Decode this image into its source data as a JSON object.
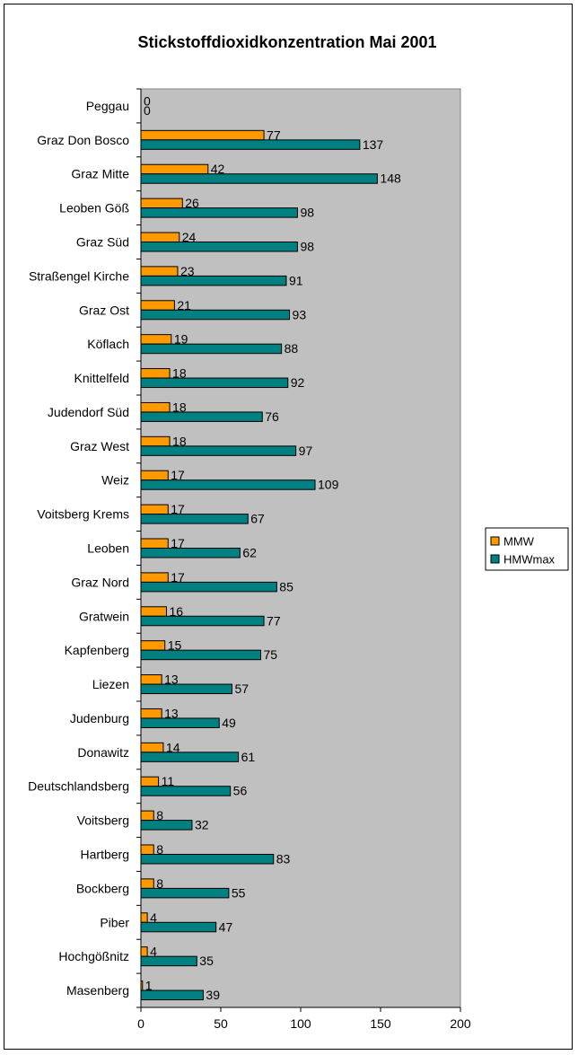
{
  "chart_data": {
    "type": "bar",
    "orientation": "horizontal",
    "title": "Stickstoffdioxidkonzentration Mai 2001",
    "xlabel": "",
    "ylabel": "",
    "xlim": [
      0,
      200
    ],
    "xticks": [
      0,
      50,
      100,
      150,
      200
    ],
    "grid": false,
    "legend_position": "right",
    "plot_background": "#c0c0c0",
    "categories": [
      "Peggau",
      "Graz Don Bosco",
      "Graz Mitte",
      "Leoben Göß",
      "Graz Süd",
      "Straßengel Kirche",
      "Graz Ost",
      "Köflach",
      "Knittelfeld",
      "Judendorf Süd",
      "Graz West",
      "Weiz",
      "Voitsberg Krems",
      "Leoben",
      "Graz Nord",
      "Gratwein",
      "Kapfenberg",
      "Liezen",
      "Judenburg",
      "Donawitz",
      "Deutschlandsberg",
      "Voitsberg",
      "Hartberg",
      "Bockberg",
      "Piber",
      "Hochgößnitz",
      "Masenberg"
    ],
    "series": [
      {
        "name": "MMW",
        "color": "#ff9900",
        "values": [
          0,
          77,
          42,
          26,
          24,
          23,
          21,
          19,
          18,
          18,
          18,
          17,
          17,
          17,
          17,
          16,
          15,
          13,
          13,
          14,
          11,
          8,
          8,
          8,
          4,
          4,
          1
        ]
      },
      {
        "name": "HMWmax",
        "color": "#008080",
        "values": [
          0,
          137,
          148,
          98,
          98,
          91,
          93,
          88,
          92,
          76,
          97,
          109,
          67,
          62,
          85,
          77,
          75,
          57,
          49,
          61,
          56,
          32,
          83,
          55,
          47,
          35,
          39
        ]
      }
    ]
  }
}
